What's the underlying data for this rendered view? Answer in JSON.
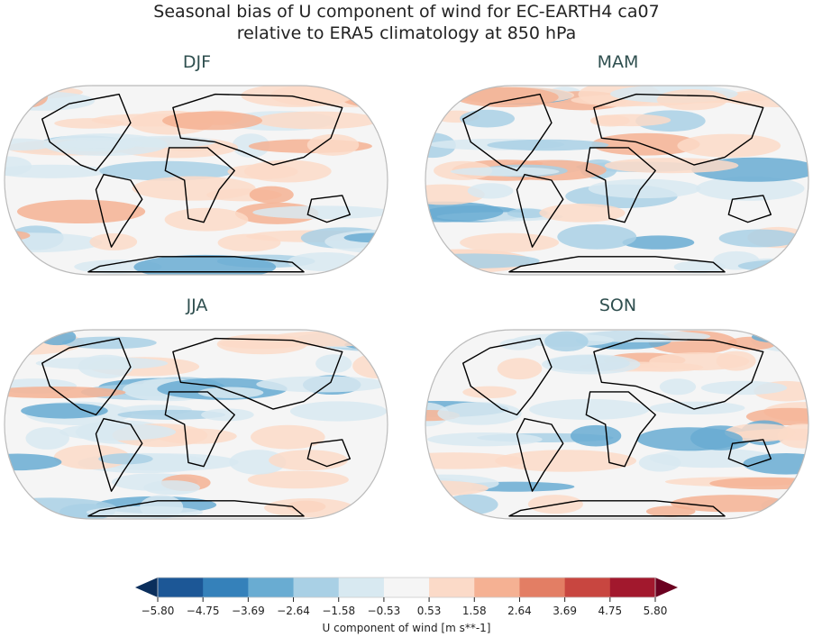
{
  "title_line1": "Seasonal bias of U component of wind for EC-EARTH4 ca07",
  "title_line2": "relative to ERA5 climatology at 850 hPa",
  "panels": [
    {
      "label": "DJF"
    },
    {
      "label": "MAM"
    },
    {
      "label": "JJA"
    },
    {
      "label": "SON"
    }
  ],
  "colorbar": {
    "label": "U component of wind [m s**-1]",
    "ticks": [
      "−5.80",
      "−4.75",
      "−3.69",
      "−2.64",
      "−1.58",
      "−0.53",
      "0.53",
      "1.58",
      "2.64",
      "3.69",
      "4.75",
      "5.80"
    ],
    "colors": [
      "#1c5796",
      "#3581ba",
      "#69acd2",
      "#a9d0e5",
      "#d8e9f1",
      "#f5f5f5",
      "#fbdac8",
      "#f5b193",
      "#e37e64",
      "#c84640",
      "#a2182d"
    ],
    "under_color": "#0b2f5c",
    "over_color": "#6b0120",
    "extend": "both"
  },
  "projection": "Robinson"
}
